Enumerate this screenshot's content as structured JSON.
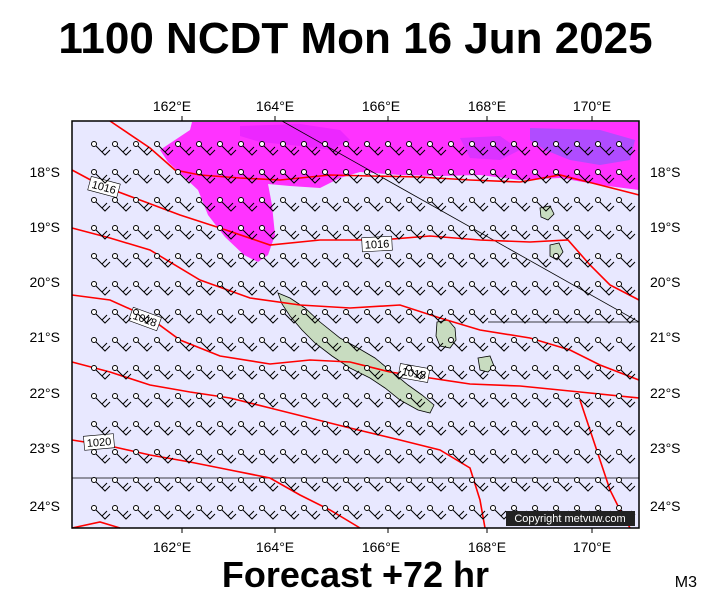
{
  "title": "1100 NCDT Mon 16 Jun 2025",
  "footer": "Forecast +72 hr",
  "model_code": "M3",
  "copyright": "Copyright metvuw.com",
  "longitude_labels": [
    "162°E",
    "164°E",
    "166°E",
    "168°E",
    "170°E"
  ],
  "latitude_labels": [
    "18°S",
    "19°S",
    "20°S",
    "21°S",
    "22°S",
    "23°S",
    "24°S"
  ],
  "isobar_labels": [
    "1016",
    "1016",
    "1018",
    "1018",
    "1020"
  ],
  "colors": {
    "ocean": "#e8e8ff",
    "isobar": "#ff0000",
    "rain_light": "#ff33ff",
    "rain_heavy": "#b04cff",
    "land": "#c8dcc0"
  }
}
